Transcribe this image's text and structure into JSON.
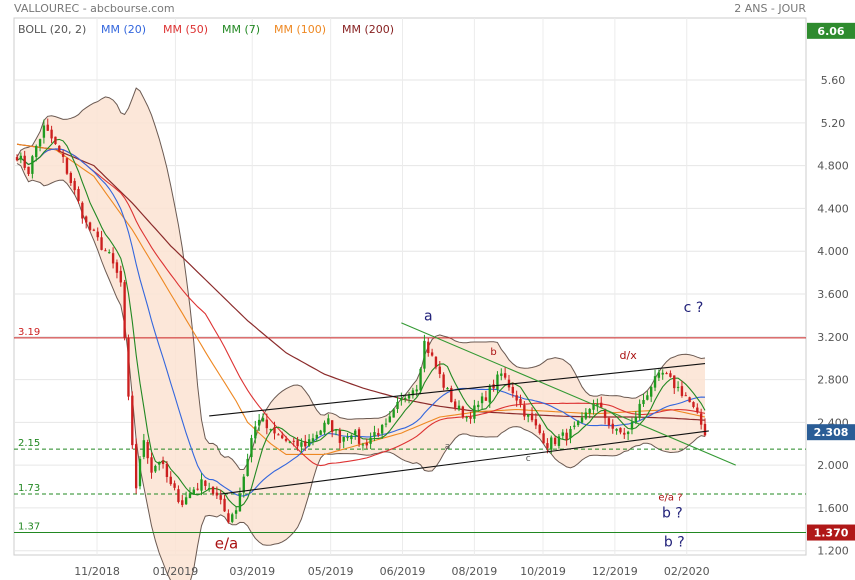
{
  "header": {
    "title": "VALLOUREC - abcbourse.com",
    "period": "2 ANS - JOUR"
  },
  "legend": [
    {
      "label": "BOLL (20, 2)",
      "color": "#555555"
    },
    {
      "label": "MM (20)",
      "color": "#3366dd"
    },
    {
      "label": "MM (50)",
      "color": "#dd3333"
    },
    {
      "label": "MM (7)",
      "color": "#228822"
    },
    {
      "label": "MM (100)",
      "color": "#ee8822"
    },
    {
      "label": "MM (200)",
      "color": "#882222"
    }
  ],
  "chart_data": {
    "type": "candlestick",
    "title": "VALLOUREC",
    "y_ticks": [
      "1.200",
      "1.600",
      "2.000",
      "2.400",
      "2.800",
      "3.200",
      "3.600",
      "4.000",
      "4.400",
      "4.800",
      "5.20",
      "5.60"
    ],
    "x_ticks": [
      "11/2018",
      "01/2019",
      "03/2019",
      "05/2019",
      "06/2019",
      "08/2019",
      "10/2019",
      "12/2019",
      "02/2020"
    ],
    "ylim": [
      1.16,
      6.18
    ],
    "grid": true,
    "price_tags": [
      {
        "value": 6.06,
        "text": "6.06",
        "color": "#2e8b2e"
      },
      {
        "value": 2.308,
        "text": "2.308",
        "color": "#2a5d96"
      },
      {
        "value": 1.37,
        "text": "1.370",
        "color": "#b01818"
      }
    ],
    "levels": [
      {
        "value": 3.19,
        "label": "3.19",
        "color": "#cc2222",
        "style": "solid"
      },
      {
        "value": 2.15,
        "label": "2.15",
        "color": "#228822",
        "style": "dashed"
      },
      {
        "value": 1.73,
        "label": "1.73",
        "color": "#228822",
        "style": "dashed"
      },
      {
        "value": 1.37,
        "label": "1.37",
        "color": "#228822",
        "style": "solid"
      }
    ],
    "close_path": [
      [
        0,
        4.9
      ],
      [
        3,
        4.75
      ],
      [
        5,
        4.98
      ],
      [
        7,
        5.15
      ],
      [
        9,
        5.05
      ],
      [
        12,
        4.85
      ],
      [
        15,
        4.55
      ],
      [
        18,
        4.25
      ],
      [
        21,
        4.1
      ],
      [
        24,
        3.95
      ],
      [
        27,
        3.7
      ],
      [
        29,
        2.6
      ],
      [
        31,
        1.8
      ],
      [
        33,
        2.25
      ],
      [
        35,
        1.95
      ],
      [
        37,
        2.05
      ],
      [
        40,
        1.8
      ],
      [
        43,
        1.65
      ],
      [
        46,
        1.78
      ],
      [
        49,
        1.85
      ],
      [
        52,
        1.7
      ],
      [
        55,
        1.5
      ],
      [
        57,
        1.6
      ],
      [
        59,
        1.9
      ],
      [
        61,
        2.25
      ],
      [
        63,
        2.45
      ],
      [
        66,
        2.3
      ],
      [
        69,
        2.25
      ],
      [
        72,
        2.18
      ],
      [
        75,
        2.2
      ],
      [
        78,
        2.3
      ],
      [
        81,
        2.4
      ],
      [
        84,
        2.25
      ],
      [
        87,
        2.32
      ],
      [
        90,
        2.18
      ],
      [
        93,
        2.3
      ],
      [
        96,
        2.35
      ],
      [
        99,
        2.55
      ],
      [
        102,
        2.7
      ],
      [
        104,
        2.75
      ],
      [
        106,
        3.15
      ],
      [
        108,
        3.0
      ],
      [
        111,
        2.75
      ],
      [
        114,
        2.55
      ],
      [
        117,
        2.45
      ],
      [
        120,
        2.55
      ],
      [
        123,
        2.7
      ],
      [
        126,
        2.85
      ],
      [
        129,
        2.7
      ],
      [
        132,
        2.5
      ],
      [
        135,
        2.35
      ],
      [
        138,
        2.2
      ],
      [
        141,
        2.25
      ],
      [
        144,
        2.3
      ],
      [
        147,
        2.4
      ],
      [
        150,
        2.6
      ],
      [
        153,
        2.45
      ],
      [
        156,
        2.3
      ],
      [
        159,
        2.3
      ],
      [
        162,
        2.55
      ],
      [
        165,
        2.75
      ],
      [
        168,
        2.85
      ],
      [
        171,
        2.75
      ],
      [
        174,
        2.65
      ],
      [
        177,
        2.45
      ],
      [
        179,
        2.31
      ]
    ],
    "ma200_path": [
      [
        0,
        5.0
      ],
      [
        10,
        4.95
      ],
      [
        20,
        4.8
      ],
      [
        30,
        4.45
      ],
      [
        40,
        4.05
      ],
      [
        50,
        3.7
      ],
      [
        60,
        3.35
      ],
      [
        70,
        3.05
      ],
      [
        80,
        2.85
      ],
      [
        90,
        2.72
      ],
      [
        100,
        2.62
      ],
      [
        110,
        2.55
      ],
      [
        120,
        2.5
      ],
      [
        130,
        2.48
      ],
      [
        140,
        2.46
      ],
      [
        150,
        2.45
      ],
      [
        160,
        2.45
      ],
      [
        170,
        2.44
      ],
      [
        179,
        2.42
      ]
    ],
    "ma100_path": [
      [
        0,
        5.0
      ],
      [
        10,
        4.95
      ],
      [
        20,
        4.7
      ],
      [
        30,
        4.2
      ],
      [
        40,
        3.6
      ],
      [
        50,
        3.0
      ],
      [
        57,
        2.6
      ],
      [
        60,
        2.4
      ],
      [
        66,
        2.2
      ],
      [
        70,
        2.1
      ],
      [
        80,
        2.1
      ],
      [
        90,
        2.2
      ],
      [
        100,
        2.3
      ],
      [
        110,
        2.45
      ],
      [
        120,
        2.5
      ],
      [
        130,
        2.52
      ],
      [
        140,
        2.5
      ],
      [
        150,
        2.48
      ],
      [
        160,
        2.5
      ],
      [
        170,
        2.52
      ],
      [
        179,
        2.45
      ]
    ],
    "channels": [
      {
        "from": [
          50,
          2.46
        ],
        "to": [
          179,
          2.95
        ],
        "color": "#111111"
      },
      {
        "from": [
          53,
          1.73
        ],
        "to": [
          180,
          2.32
        ],
        "color": "#111111"
      },
      {
        "from": [
          100,
          3.33
        ],
        "to": [
          187,
          2.0
        ],
        "color": "#339933"
      }
    ],
    "wave_labels": [
      {
        "text": "e/a",
        "x": 54.5,
        "y": 1.22,
        "color": "#aa1111",
        "size": 15
      },
      {
        "text": "a",
        "x": 107,
        "y": 3.35,
        "color": "#22227a",
        "size": 14
      },
      {
        "text": "b",
        "x": 124,
        "y": 3.03,
        "color": "#aa1111",
        "size": 10
      },
      {
        "text": "a",
        "x": 112,
        "y": 2.15,
        "color": "#555555",
        "size": 9
      },
      {
        "text": "c",
        "x": 133,
        "y": 2.04,
        "color": "#555555",
        "size": 9
      },
      {
        "text": "d/x",
        "x": 159,
        "y": 2.99,
        "color": "#aa1111",
        "size": 11
      },
      {
        "text": "c ?",
        "x": 176,
        "y": 3.43,
        "color": "#22227a",
        "size": 14
      },
      {
        "text": "e/a ?",
        "x": 170,
        "y": 1.67,
        "color": "#aa1111",
        "size": 10
      },
      {
        "text": "b ?",
        "x": 170.5,
        "y": 1.51,
        "color": "#22227a",
        "size": 14
      },
      {
        "text": "b ?",
        "x": 171,
        "y": 1.24,
        "color": "#22227a",
        "size": 14
      }
    ]
  }
}
